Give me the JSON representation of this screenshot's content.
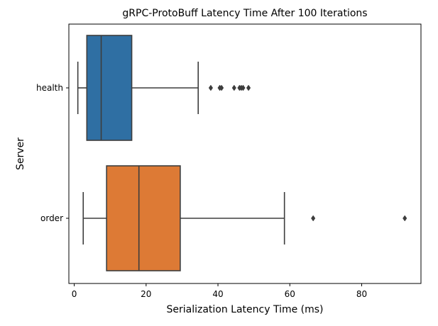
{
  "chart_data": {
    "type": "boxplot",
    "orientation": "horizontal",
    "title": "gRPC-ProtoBuff Latency Time After 100 Iterations",
    "xlabel": "Serialization Latency Time (ms)",
    "ylabel": "Server",
    "xlim": [
      -1.5,
      96.5
    ],
    "xticks": [
      0,
      20,
      40,
      60,
      80
    ],
    "categories": [
      "health",
      "order"
    ],
    "series": [
      {
        "category": "health",
        "color": "#2f6fa3",
        "whisker_low": 1.0,
        "q1": 3.5,
        "median": 7.5,
        "q3": 16.0,
        "whisker_high": 34.5,
        "outliers": [
          38.0,
          40.5,
          41.0,
          44.5,
          46.0,
          46.5,
          47.0,
          48.5
        ]
      },
      {
        "category": "order",
        "color": "#dd7a35",
        "whisker_low": 2.5,
        "q1": 9.0,
        "median": 18.0,
        "q3": 29.5,
        "whisker_high": 58.5,
        "outliers": [
          66.5,
          92.0
        ]
      }
    ],
    "grid": false,
    "legend": false
  }
}
